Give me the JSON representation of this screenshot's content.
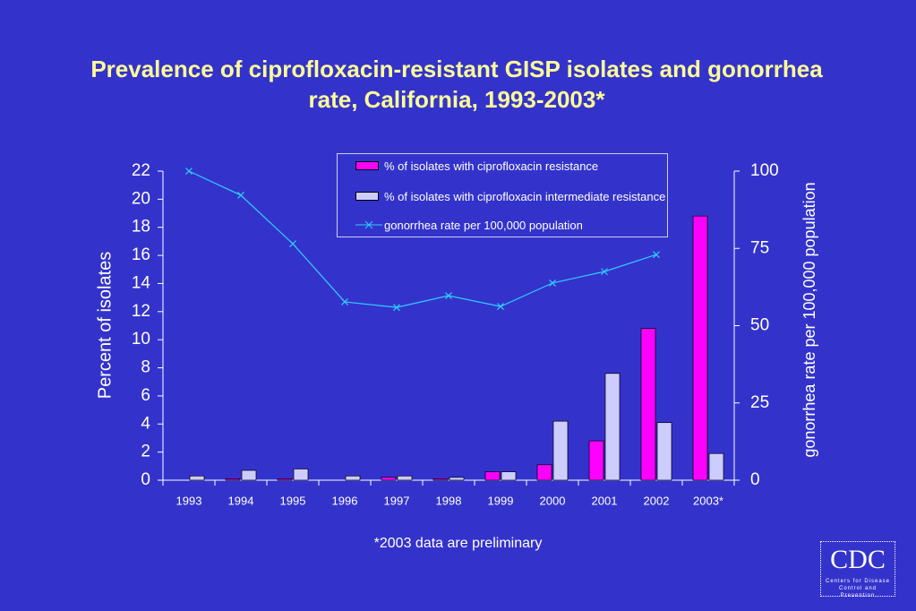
{
  "chart_data": {
    "type": "bar",
    "title": "Prevalence of ciprofloxacin-resistant GISP isolates and gonorrhea rate, California, 1993-2003*",
    "categories": [
      "1993",
      "1994",
      "1995",
      "1996",
      "1997",
      "1998",
      "1999",
      "2000",
      "2001",
      "2002",
      "2003*"
    ],
    "series": [
      {
        "name": "% of isolates with ciprofloxacin resistance",
        "color": "#ff00ff",
        "values": [
          0,
          0.1,
          0.1,
          0,
          0.2,
          0.1,
          0.6,
          1.1,
          2.8,
          10.8,
          18.8
        ]
      },
      {
        "name": "% of isolates with ciprofloxacin intermediate resistance",
        "color": "#ccccff",
        "values": [
          0.3,
          0.7,
          0.8,
          0.3,
          0.3,
          0.2,
          0.6,
          4.2,
          7.6,
          4.1,
          1.9
        ]
      },
      {
        "name": "gonorrhea rate per 100,000 population",
        "color": "#33ccff",
        "type": "line",
        "axis": "y2",
        "values": [
          100,
          92.2,
          76.5,
          57.7,
          55.9,
          59.7,
          56.2,
          63.8,
          67.5,
          73.0,
          null
        ]
      }
    ],
    "ylabel": "Percent of isolates",
    "y2label": "gonorrhea rate per 100,000 population",
    "ylim": [
      0,
      22
    ],
    "yticks": [
      0,
      2,
      4,
      6,
      8,
      10,
      12,
      14,
      16,
      18,
      20,
      22
    ],
    "y2lim": [
      0,
      100
    ],
    "y2ticks": [
      0,
      25,
      50,
      75,
      100
    ],
    "footnote": "*2003 data are preliminary",
    "logo": {
      "text": "CDC",
      "subtitle": "Centers for Disease Control and Prevention"
    }
  }
}
